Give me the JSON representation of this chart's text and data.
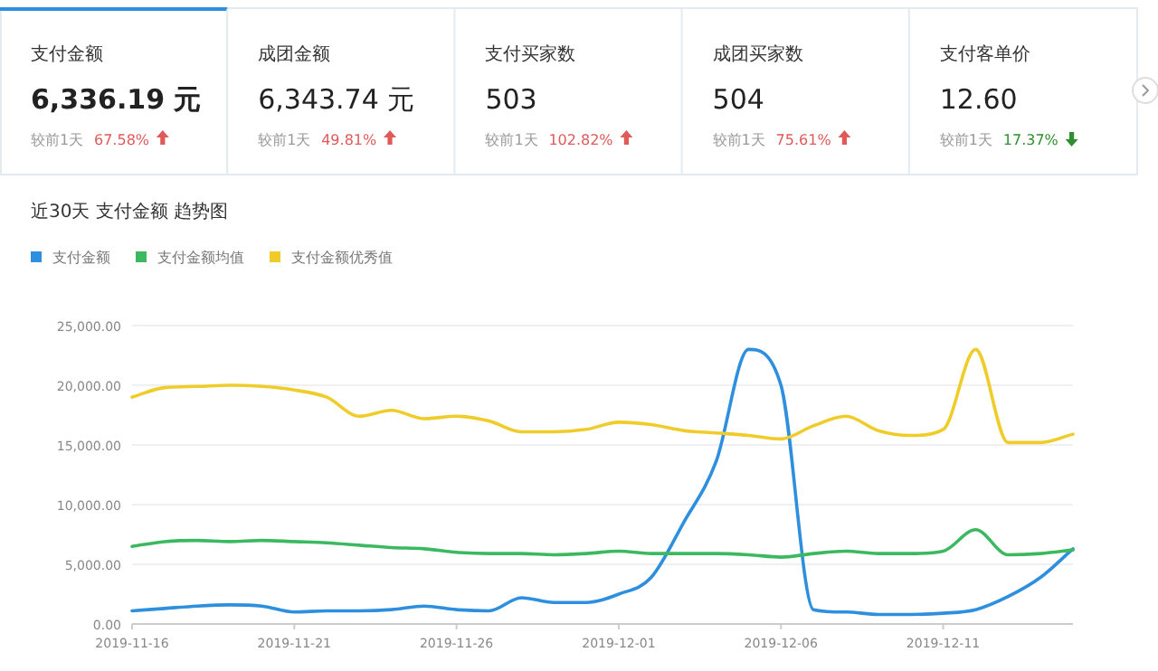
{
  "chart_data": [
    {
      "type": "other",
      "categories": [
        "支付金额",
        "成团金额",
        "支付买家数",
        "成团买家数",
        "支付客单价"
      ],
      "series": [
        {
          "color": "#e05a5a",
          "values": [
            67.58,
            49.81,
            102.82,
            75.61,
            null
          ],
          "value_labels": [
            "67.58%",
            "49.81%",
            "102.82%",
            "75.61%",
            null
          ]
        },
        {
          "color": "#2f8f2f",
          "values": [
            null,
            null,
            null,
            null,
            17.37
          ],
          "value_labels": [
            null,
            null,
            null,
            null,
            "17.37%"
          ]
        }
      ],
      "annotations": [
        "6,336.19 元",
        "6,343.74 元",
        "503",
        "504",
        "12.60",
        "较前1天",
        "较前1天",
        "较前1天",
        "较前1天",
        "较前1天"
      ]
    },
    {
      "type": "line",
      "title": "近30天 支付金额 趋势图",
      "legend": "top left",
      "grid": "y",
      "marker": "none",
      "line_style": "solid",
      "x": [
        "2019-11-16",
        "2019-11-17",
        "2019-11-18",
        "2019-11-19",
        "2019-11-20",
        "2019-11-21",
        "2019-11-22",
        "2019-11-23",
        "2019-11-24",
        "2019-11-25",
        "2019-11-26",
        "2019-11-27",
        "2019-11-28",
        "2019-11-29",
        "2019-11-30",
        "2019-12-01",
        "2019-12-02",
        "2019-12-03",
        "2019-12-04",
        "2019-12-05",
        "2019-12-06",
        "2019-12-07",
        "2019-12-08",
        "2019-12-09",
        "2019-12-10",
        "2019-12-11",
        "2019-12-12",
        "2019-12-13",
        "2019-12-14",
        "2019-12-15"
      ],
      "xlim": [
        "2019-11-16",
        "2019-12-15"
      ],
      "xticks": [
        "2019-11-16",
        "2019-11-21",
        "2019-11-26",
        "2019-12-01",
        "2019-12-06",
        "2019-12-11"
      ],
      "ylim": [
        0,
        25000
      ],
      "yticks": [
        {
          "value": 0,
          "label": "0.00"
        },
        {
          "value": 5000,
          "label": "5,000.00"
        },
        {
          "value": 10000,
          "label": "10,000.00"
        },
        {
          "value": 15000,
          "label": "15,000.00"
        },
        {
          "value": 20000,
          "label": "20,000.00"
        },
        {
          "value": 25000,
          "label": "25,000.00"
        }
      ],
      "series": [
        {
          "name": "支付金额",
          "color": "#2d8fdd",
          "values": [
            1100,
            1300,
            1500,
            1600,
            1500,
            1000,
            1100,
            1100,
            1200,
            1500,
            1200,
            1100,
            2200,
            1800,
            1800,
            2500,
            3900,
            8500,
            13600,
            23000,
            20000,
            1200,
            1000,
            800,
            800,
            900,
            1200,
            2300,
            3900,
            6300
          ]
        },
        {
          "name": "支付金额均值",
          "color": "#3cb960",
          "values": [
            6500,
            6900,
            7000,
            6900,
            7000,
            6900,
            6800,
            6600,
            6400,
            6300,
            6000,
            5900,
            5900,
            5800,
            5900,
            6100,
            5900,
            5900,
            5900,
            5800,
            5600,
            5900,
            6100,
            5900,
            5900,
            6100,
            7900,
            5800,
            5900,
            6200
          ]
        },
        {
          "name": "支付金额优秀值",
          "color": "#f0cc2a",
          "values": [
            19000,
            19800,
            19900,
            20000,
            19900,
            19600,
            19000,
            17400,
            17900,
            17200,
            17400,
            17000,
            16100,
            16100,
            16300,
            16900,
            16700,
            16200,
            16000,
            15800,
            15500,
            16600,
            17400,
            16200,
            15800,
            16300,
            23000,
            15200,
            15200,
            15900
          ]
        }
      ]
    }
  ]
}
